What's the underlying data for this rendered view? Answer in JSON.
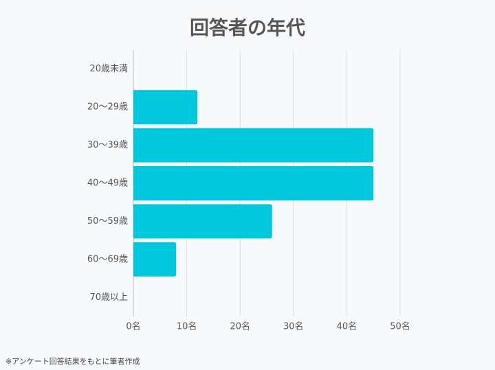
{
  "chart_data": {
    "type": "bar",
    "orientation": "horizontal",
    "title": "回答者の年代",
    "categories": [
      "20歳未満",
      "20〜29歳",
      "30〜39歳",
      "40〜49歳",
      "50〜59歳",
      "60〜69歳",
      "70歳以上"
    ],
    "values": [
      0,
      12,
      45,
      45,
      26,
      8,
      0
    ],
    "color": "#00c8dc",
    "xlim": [
      0,
      50
    ],
    "xticks": [
      {
        "value": 0,
        "label": "0名"
      },
      {
        "value": 10,
        "label": "10名"
      },
      {
        "value": 20,
        "label": "20名"
      },
      {
        "value": 30,
        "label": "30名"
      },
      {
        "value": 40,
        "label": "40名"
      },
      {
        "value": 50,
        "label": "50名"
      }
    ],
    "grid": true,
    "note": "※アンケート回答結果をもとに筆者作成"
  }
}
